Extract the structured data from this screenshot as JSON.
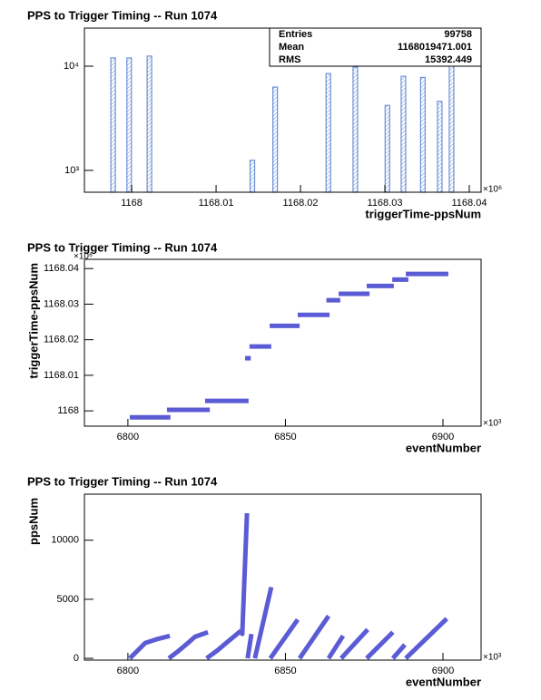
{
  "chart_data": [
    {
      "type": "bar",
      "title": "PPS to Trigger Timing -- Run 1074",
      "xlabel": "triggerTime-ppsNum",
      "x_exponent": "×10⁶",
      "x": [
        1167.9978,
        1167.9997,
        1168.0021,
        1168.0143,
        1168.017,
        1168.0233,
        1168.0265,
        1168.0303,
        1168.0322,
        1168.0345,
        1168.0365,
        1168.0379
      ],
      "values": [
        12000,
        12000,
        12500,
        1250,
        6300,
        8500,
        9800,
        4200,
        8000,
        7800,
        4600,
        12200
      ],
      "color": "#6b8fd6",
      "hatch": true,
      "log_y": true,
      "xlim": [
        1167.9944,
        1168.0414
      ],
      "xticks": [
        1168,
        1168.01,
        1168.02,
        1168.03,
        1168.04
      ],
      "ylim": [
        617,
        23200
      ],
      "yticks": [
        {
          "value": 1000,
          "label": "10³"
        },
        {
          "value": 10000,
          "label": "10⁴"
        }
      ],
      "stats": {
        "labels": [
          "Entries",
          "Mean",
          "RMS"
        ],
        "values": [
          "99758",
          "1168019471.001",
          "15392.449"
        ]
      }
    },
    {
      "type": "segments",
      "title": "PPS to Trigger Timing -- Run 1074",
      "xlabel": "eventNumber",
      "ylabel": "triggerTime-ppsNum",
      "x_exponent": "×10³",
      "y_exponent": "×10⁶",
      "x_start": [
        6800.6,
        6812.4,
        6824.5,
        6837.2,
        6838.6,
        6845,
        6853.9,
        6863,
        6866.9,
        6875.8,
        6883.9,
        6888.2
      ],
      "x_end": [
        6813.5,
        6826,
        6838.3,
        6839,
        6845.5,
        6854.5,
        6864,
        6867.4,
        6876.7,
        6884.4,
        6889,
        6901.7
      ],
      "values": [
        1167.9982,
        1168.0003,
        1168.0028,
        1168.0148,
        1168.0181,
        1168.0239,
        1168.027,
        1168.0311,
        1168.0329,
        1168.0351,
        1168.0369,
        1168.0385
      ],
      "color": "#5b5bd6",
      "xlim": [
        6786.2,
        6912.1
      ],
      "xticks": [
        6800,
        6850,
        6900
      ],
      "ylim": [
        1167.9957,
        1168.0426
      ],
      "yticks": [
        1168,
        1168.01,
        1168.02,
        1168.03,
        1168.04
      ]
    },
    {
      "type": "line",
      "title": "PPS to Trigger Timing -- Run 1074",
      "xlabel": "eventNumber",
      "ylabel": "ppsNum",
      "x_exponent": "×10³",
      "x": [
        6800.6,
        6805.5,
        6808.9,
        6813.3,
        null,
        6813,
        6815.6,
        6818.4,
        6821.3,
        6825.4,
        null,
        6825,
        6828.5,
        6832.9,
        6835.7,
        6836.3,
        6837.8,
        null,
        6838,
        6839.2,
        null,
        6840.3,
        6845.5,
        null,
        6845.2,
        6853.9,
        null,
        6854.5,
        6863.7,
        null,
        6863.7,
        6868.3,
        null,
        6867.7,
        6876.1,
        null,
        6875.8,
        6884.1,
        null,
        6884.1,
        6887.9,
        null,
        6888.2,
        6901.2
      ],
      "values": [
        0,
        1300,
        1600,
        1900,
        null,
        0,
        530,
        1150,
        1830,
        2210,
        null,
        0,
        690,
        1680,
        2290,
        2060,
        12290,
        null,
        0,
        2060,
        null,
        0,
        6030,
        null,
        0,
        3280,
        null,
        0,
        3590,
        null,
        0,
        1910,
        null,
        0,
        2440,
        null,
        0,
        2210,
        null,
        0,
        1150,
        null,
        0,
        3360
      ],
      "color": "#5b5bd6",
      "xlim": [
        6786.2,
        6912.1
      ],
      "xticks": [
        6800,
        6850,
        6900
      ],
      "ylim": [
        -150,
        13900
      ],
      "yticks": [
        0,
        5000,
        10000
      ]
    }
  ]
}
